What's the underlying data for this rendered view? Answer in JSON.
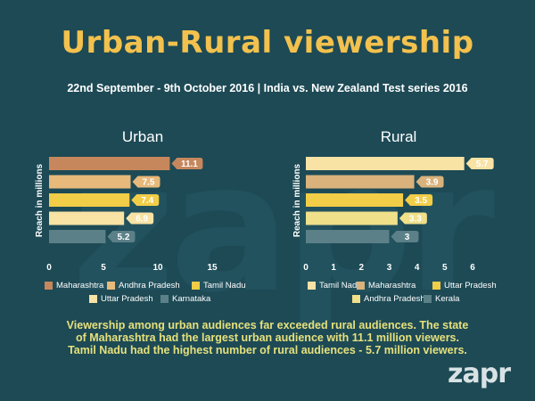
{
  "title": "Urban-Rural viewership",
  "subtitle": "22nd September - 9th  October 2016 | India vs. New Zealand Test series 2016",
  "watermark": "zapr",
  "brand": "zapr",
  "footnote": "Viewership among urban audiences far exceeded rural audiences. The state of Maharashtra had the largest urban audience with 11.1 million viewers. Tamil Nadu had the highest number of rural audiences - 5.7 million viewers.",
  "chart_data": [
    {
      "type": "bar",
      "orientation": "horizontal",
      "title": "Urban",
      "ylabel": "Reach in millions",
      "xlim": [
        0,
        15
      ],
      "xticks": [
        "0",
        "5",
        "10",
        "15"
      ],
      "categories": [
        "Maharashtra",
        "Andhra Pradesh",
        "Tamil Nadu",
        "Uttar Pradesh",
        "Karnataka"
      ],
      "values": [
        11.1,
        7.5,
        7.4,
        6.9,
        5.2
      ],
      "labels": [
        "11.1",
        "7.5",
        "7.4",
        "6.9",
        "5.2"
      ],
      "colors": [
        "#c7875c",
        "#e7b97a",
        "#f2cd48",
        "#f8e2a4",
        "#5c8088"
      ],
      "legend": "bottom"
    },
    {
      "type": "bar",
      "orientation": "horizontal",
      "title": "Rural",
      "ylabel": "Reach in millions",
      "xlim": [
        0,
        6
      ],
      "xticks": [
        "0",
        "1",
        "2",
        "3",
        "4",
        "5",
        "6"
      ],
      "categories": [
        "Tamil Nadu",
        "Maharashtra",
        "Uttar Pradesh",
        "Andhra Pradesh",
        "Kerala"
      ],
      "values": [
        5.7,
        3.9,
        3.5,
        3.3,
        3
      ],
      "labels": [
        "5.7",
        "3.9",
        "3.5",
        "3.3",
        "3"
      ],
      "colors": [
        "#f8e2a4",
        "#d9b27c",
        "#f2cd48",
        "#f0e08a",
        "#5c8088"
      ],
      "legend": "bottom"
    }
  ]
}
